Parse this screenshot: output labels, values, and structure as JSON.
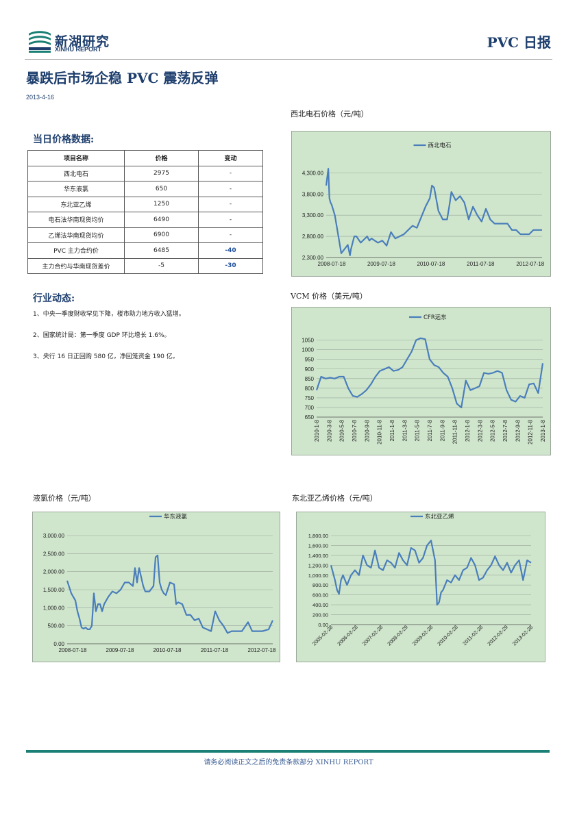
{
  "header": {
    "logo_cn": "新湖研究",
    "logo_en": "XINHU REPORT",
    "report_type": "PVC 日报"
  },
  "headline": "暴跌后市场企稳 PVC 震荡反弹",
  "date": "2013-4-16",
  "price_section": {
    "title": "当日价格数据:",
    "columns": [
      "项目名称",
      "价格",
      "变动"
    ],
    "rows": [
      [
        "西北电石",
        "2975",
        "-"
      ],
      [
        "华东液氯",
        "650",
        "-"
      ],
      [
        "东北亚乙烯",
        "1250",
        "-"
      ],
      [
        "电石法华南现货均价",
        "6490",
        "-"
      ],
      [
        "乙烯法华南现货均价",
        "6900",
        "-"
      ],
      [
        "PVC 主力合约价",
        "6485",
        "-40"
      ],
      [
        "主力合约与华南现货差价",
        "-5",
        "-30"
      ]
    ]
  },
  "news_section": {
    "title": "行业动态:",
    "items": [
      "1、中央一季度财收罕见下降，楼市助力地方收入猛增。",
      "2、国家统计局：第一季度 GDP 环比增长 1.6%。",
      "3、央行 16 日正回购 580 亿，净回笼资金 190 亿。"
    ]
  },
  "colors": {
    "brand": "#1e3f6e",
    "series": "#4a7ebb",
    "chart_bg": "#cfe6cc",
    "footer_rule": "#1a7f74"
  },
  "chart_data": [
    {
      "type": "line",
      "title": "西北电石价格（元/吨）",
      "legend": "西北电石",
      "legend_position": "top",
      "x_ticks": [
        "2008-07-18",
        "2009-07-18",
        "2010-07-18",
        "2011-07-18",
        "2012-07-18"
      ],
      "y_ticks": [
        "2,300.00",
        "2,800.00",
        "3,300.00",
        "3,800.00",
        "4,300.00"
      ],
      "ylim": [
        2300,
        4500
      ],
      "x": [
        0,
        0.01,
        0.015,
        0.02,
        0.025,
        0.04,
        0.07,
        0.1,
        0.11,
        0.115,
        0.13,
        0.14,
        0.16,
        0.19,
        0.2,
        0.21,
        0.24,
        0.26,
        0.28,
        0.3,
        0.32,
        0.34,
        0.36,
        0.38,
        0.4,
        0.42,
        0.44,
        0.46,
        0.48,
        0.49,
        0.5,
        0.52,
        0.54,
        0.56,
        0.57,
        0.58,
        0.6,
        0.62,
        0.64,
        0.66,
        0.68,
        0.7,
        0.72,
        0.74,
        0.76,
        0.78,
        0.8,
        0.82,
        0.84,
        0.86,
        0.88,
        0.9,
        0.92,
        0.94,
        0.96,
        0.98,
        1.0
      ],
      "values": [
        4000,
        4400,
        3700,
        3600,
        3550,
        3300,
        2400,
        2600,
        2350,
        2500,
        2800,
        2800,
        2650,
        2800,
        2700,
        2750,
        2650,
        2700,
        2580,
        2900,
        2750,
        2800,
        2850,
        2950,
        3050,
        3000,
        3250,
        3500,
        3700,
        4000,
        3950,
        3400,
        3200,
        3200,
        3500,
        3850,
        3650,
        3750,
        3600,
        3200,
        3500,
        3300,
        3150,
        3450,
        3200,
        3100,
        3100,
        3100,
        3100,
        2950,
        2950,
        2850,
        2850,
        2850,
        2950,
        2950,
        2950
      ]
    },
    {
      "type": "line",
      "title": "VCM 价格（美元/吨）",
      "legend": "CFR远东",
      "legend_position": "top",
      "x_ticks": [
        "2010-1-8",
        "2010-3-8",
        "2010-5-8",
        "2010-7-8",
        "2010-9-8",
        "2010-11-8",
        "2011-1-8",
        "2011-3-8",
        "2011-5-8",
        "2011-7-8",
        "2011-9-8",
        "2011-11-8",
        "2012-1-8",
        "2012-3-8",
        "2012-5-8",
        "2012-7-8",
        "2012-9-8",
        "2012-11-8",
        "2013-1-8"
      ],
      "y_ticks": [
        "650",
        "700",
        "750",
        "800",
        "850",
        "900",
        "950",
        "1000",
        "1050"
      ],
      "ylim": [
        650,
        1070
      ],
      "x": [
        0,
        0.02,
        0.04,
        0.06,
        0.08,
        0.1,
        0.12,
        0.14,
        0.16,
        0.18,
        0.2,
        0.22,
        0.24,
        0.26,
        0.28,
        0.3,
        0.32,
        0.34,
        0.36,
        0.38,
        0.4,
        0.42,
        0.44,
        0.46,
        0.48,
        0.5,
        0.52,
        0.54,
        0.56,
        0.58,
        0.6,
        0.62,
        0.64,
        0.66,
        0.68,
        0.7,
        0.72,
        0.74,
        0.76,
        0.78,
        0.8,
        0.82,
        0.84,
        0.86,
        0.88,
        0.9,
        0.92,
        0.94,
        0.96,
        0.98,
        1.0
      ],
      "values": [
        790,
        860,
        850,
        855,
        850,
        860,
        860,
        800,
        760,
        755,
        770,
        790,
        820,
        860,
        890,
        900,
        910,
        890,
        895,
        910,
        950,
        990,
        1050,
        1060,
        1055,
        950,
        920,
        910,
        880,
        860,
        800,
        720,
        700,
        840,
        790,
        800,
        810,
        880,
        875,
        880,
        890,
        880,
        790,
        740,
        730,
        760,
        750,
        820,
        825,
        775,
        930
      ]
    },
    {
      "type": "line",
      "title": "液氯价格（元/吨）",
      "legend": "华东液氯",
      "legend_position": "top",
      "x_ticks": [
        "2008-07-18",
        "2009-07-18",
        "2010-07-18",
        "2011-07-18",
        "2012-07-18"
      ],
      "y_ticks": [
        "0.00",
        "500.00",
        "1,000.00",
        "1,500.00",
        "2,000.00",
        "2,500.00",
        "3,000.00"
      ],
      "ylim": [
        0,
        3000
      ],
      "x": [
        0,
        0.02,
        0.04,
        0.05,
        0.06,
        0.07,
        0.08,
        0.09,
        0.1,
        0.11,
        0.12,
        0.13,
        0.14,
        0.15,
        0.16,
        0.17,
        0.18,
        0.2,
        0.22,
        0.24,
        0.26,
        0.28,
        0.3,
        0.32,
        0.33,
        0.34,
        0.35,
        0.37,
        0.38,
        0.4,
        0.42,
        0.43,
        0.44,
        0.45,
        0.46,
        0.47,
        0.48,
        0.5,
        0.52,
        0.53,
        0.54,
        0.56,
        0.58,
        0.6,
        0.62,
        0.64,
        0.66,
        0.68,
        0.7,
        0.72,
        0.74,
        0.76,
        0.78,
        0.8,
        0.82,
        0.85,
        0.88,
        0.9,
        0.92,
        0.95,
        0.98,
        1.0
      ],
      "values": [
        1750,
        1400,
        1200,
        900,
        700,
        450,
        420,
        450,
        400,
        400,
        500,
        1400,
        900,
        1100,
        1100,
        900,
        1100,
        1300,
        1450,
        1400,
        1500,
        1700,
        1700,
        1600,
        2100,
        1700,
        2100,
        1600,
        1450,
        1450,
        1600,
        2400,
        2450,
        1700,
        1500,
        1400,
        1350,
        1700,
        1650,
        1100,
        1150,
        1100,
        800,
        800,
        650,
        700,
        450,
        400,
        350,
        900,
        650,
        500,
        300,
        350,
        350,
        350,
        600,
        350,
        350,
        350,
        400,
        650
      ]
    },
    {
      "type": "line",
      "title": "东北亚乙烯价格（元/吨）",
      "legend": "东北亚乙烯",
      "legend_position": "top",
      "x_ticks": [
        "2005-02-28",
        "2006-02-28",
        "2007-02-28",
        "2008-02-29",
        "2009-02-28",
        "2010-02-28",
        "2011-02-28",
        "2012-02-29",
        "2013-02-28"
      ],
      "y_ticks": [
        "0.00",
        "200.00",
        "400.00",
        "600.00",
        "800.00",
        "1,000.00",
        "1,200.00",
        "1,400.00",
        "1,600.00",
        "1,800.00"
      ],
      "ylim": [
        0,
        1800
      ],
      "x": [
        0,
        0.02,
        0.03,
        0.04,
        0.05,
        0.06,
        0.08,
        0.1,
        0.12,
        0.14,
        0.16,
        0.18,
        0.2,
        0.22,
        0.24,
        0.26,
        0.28,
        0.3,
        0.32,
        0.34,
        0.36,
        0.38,
        0.4,
        0.42,
        0.44,
        0.46,
        0.48,
        0.5,
        0.52,
        0.53,
        0.54,
        0.55,
        0.56,
        0.58,
        0.6,
        0.62,
        0.64,
        0.66,
        0.68,
        0.7,
        0.72,
        0.74,
        0.76,
        0.78,
        0.8,
        0.82,
        0.84,
        0.86,
        0.88,
        0.9,
        0.92,
        0.94,
        0.96,
        0.98,
        1.0
      ],
      "values": [
        1200,
        900,
        700,
        620,
        900,
        1000,
        800,
        1000,
        1100,
        1000,
        1400,
        1200,
        1150,
        1500,
        1150,
        1100,
        1300,
        1250,
        1150,
        1450,
        1300,
        1200,
        1550,
        1500,
        1250,
        1350,
        1600,
        1700,
        1300,
        400,
        450,
        650,
        700,
        900,
        850,
        1000,
        900,
        1100,
        1150,
        1350,
        1200,
        900,
        950,
        1100,
        1200,
        1380,
        1200,
        1100,
        1250,
        1050,
        1200,
        1300,
        900,
        1300,
        1250
      ]
    }
  ],
  "footer": {
    "disclaimer": "请务必阅读正文之后的免责条款部分 XINHU REPORT"
  }
}
